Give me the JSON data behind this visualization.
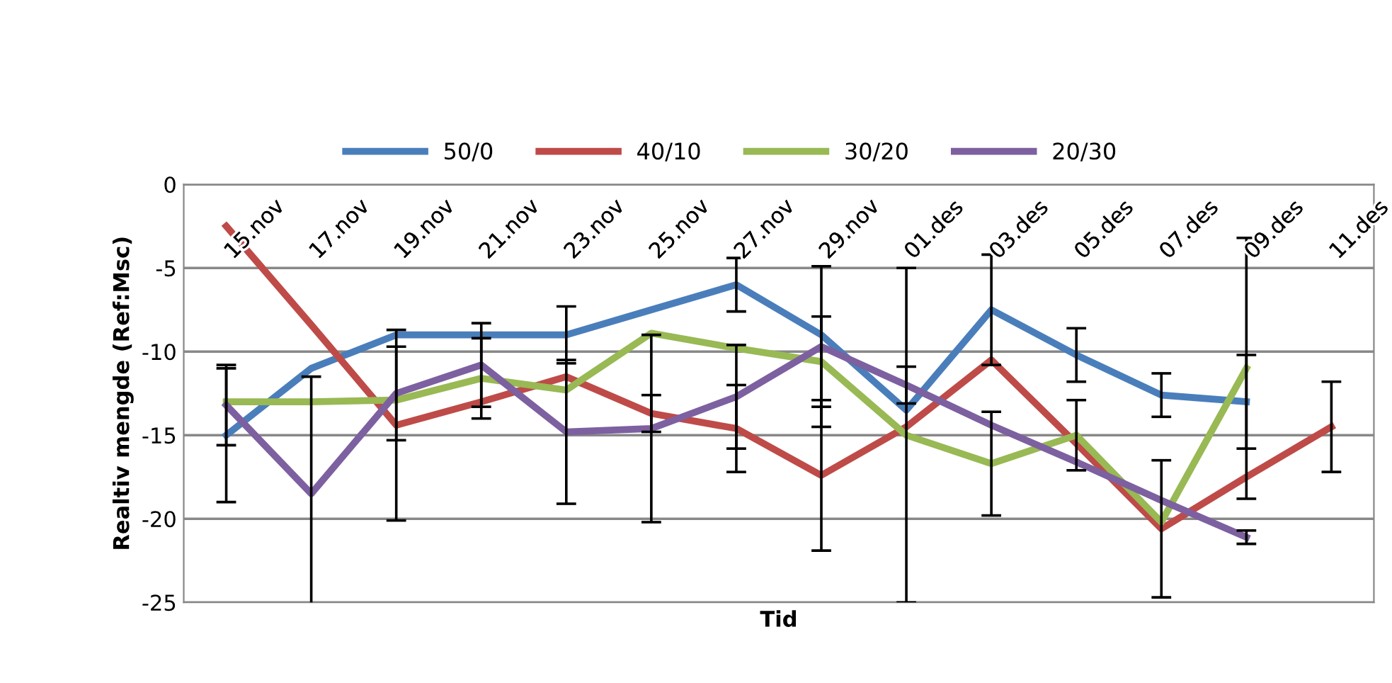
{
  "chart_data": {
    "type": "line",
    "xlabel": "Tid",
    "ylabel": "Realtiv mengde (Ref:Msc)",
    "categories": [
      "15.nov",
      "17.nov",
      "19.nov",
      "21.nov",
      "23.nov",
      "25.nov",
      "27.nov",
      "29.nov",
      "01.des",
      "03.des",
      "05.des",
      "07.des",
      "09.des",
      "11.des"
    ],
    "series": [
      {
        "name": "50/0",
        "color": "#4a7ebb",
        "values": [
          -15,
          -11,
          -9,
          -9,
          -9,
          -7.5,
          -6,
          -9,
          -13.5,
          -7.5,
          -10.2,
          -12.6,
          -13,
          null
        ],
        "errors": [
          4,
          null,
          null,
          null,
          1.7,
          null,
          1.6,
          null,
          null,
          3.3,
          1.6,
          1.3,
          2.8,
          null
        ]
      },
      {
        "name": "40/10",
        "color": "#be4b48",
        "values": [
          -2.5,
          -8.4,
          -14.4,
          -13,
          -11.5,
          -13.7,
          -14.6,
          -17.4,
          -14.5,
          -10.5,
          -15.5,
          -20.6,
          -17.5,
          -14.5
        ],
        "errors": [
          null,
          null,
          5.7,
          null,
          null,
          1.1,
          2.6,
          4.5,
          null,
          null,
          null,
          4.1,
          null,
          2.7
        ]
      },
      {
        "name": "30/20",
        "color": "#98b954",
        "values": [
          -13,
          -13,
          -12.9,
          -11.6,
          -12.3,
          -8.9,
          -9.8,
          -10.6,
          -15,
          -16.7,
          -15,
          -20.2,
          -11,
          null
        ],
        "errors": [
          null,
          null,
          null,
          2.4,
          null,
          null,
          null,
          2.7,
          10,
          3.1,
          2.1,
          null,
          7.8,
          null
        ]
      },
      {
        "name": "20/30",
        "color": "#7d60a0",
        "values": [
          -13.2,
          -18.5,
          -12.5,
          -10.8,
          -14.8,
          -14.6,
          -12.7,
          -9.7,
          -12,
          -14.4,
          -16.6,
          -18.9,
          -21.1,
          null
        ],
        "errors": [
          2.4,
          7,
          2.8,
          2.5,
          4.3,
          5.6,
          3.1,
          4.8,
          1.1,
          null,
          null,
          null,
          0.4,
          null
        ]
      }
    ],
    "ylim": [
      -25,
      0
    ],
    "yticks": [
      -25,
      -20,
      -15,
      -10,
      -5,
      0
    ],
    "grid": "y",
    "legend": "top",
    "marker": "none",
    "line_style": "solid"
  }
}
